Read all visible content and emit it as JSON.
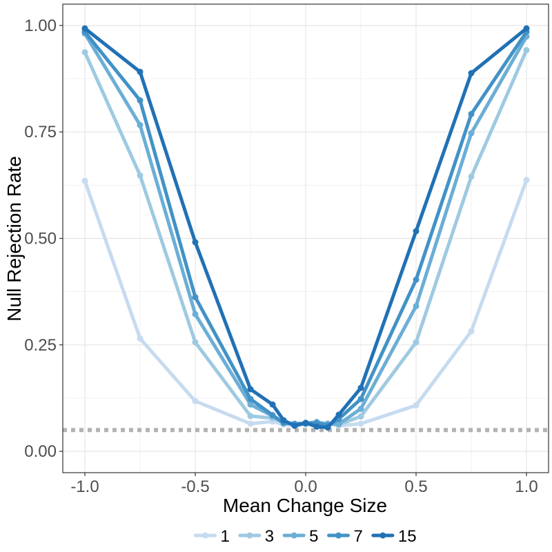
{
  "chart_data": {
    "type": "line",
    "title": "",
    "xlabel": "Mean Change Size",
    "ylabel": "Null Rejection Rate",
    "xlim": [
      -1.1,
      1.1
    ],
    "ylim": [
      -0.05,
      1.05
    ],
    "x_ticks": [
      -1.0,
      -0.5,
      0.0,
      0.5,
      1.0
    ],
    "x_tick_labels": [
      "-1.0",
      "-0.5",
      "0.0",
      "0.5",
      "1.0"
    ],
    "y_ticks": [
      0.0,
      0.25,
      0.5,
      0.75,
      1.0
    ],
    "y_tick_labels": [
      "0.00",
      "0.25",
      "0.50",
      "0.75",
      "1.00"
    ],
    "grid": true,
    "legend_position": "bottom",
    "reference_line": {
      "y": 0.05,
      "style": "dotted",
      "color": "#b3b3b3"
    },
    "x": [
      -1.0,
      -0.75,
      -0.5,
      -0.25,
      -0.15,
      -0.1,
      -0.05,
      0.0,
      0.05,
      0.1,
      0.15,
      0.25,
      0.5,
      0.75,
      1.0
    ],
    "series": [
      {
        "name": "1",
        "color": "#c6dbef",
        "values": [
          0.635,
          0.265,
          0.118,
          0.065,
          0.07,
          0.063,
          0.06,
          0.064,
          0.062,
          0.066,
          0.06,
          0.065,
          0.108,
          0.282,
          0.637
        ]
      },
      {
        "name": "3",
        "color": "#9ecae1",
        "values": [
          0.937,
          0.648,
          0.256,
          0.083,
          0.078,
          0.069,
          0.064,
          0.066,
          0.068,
          0.065,
          0.063,
          0.082,
          0.256,
          0.645,
          0.942
        ]
      },
      {
        "name": "5",
        "color": "#6baed6",
        "values": [
          0.981,
          0.766,
          0.322,
          0.11,
          0.083,
          0.066,
          0.065,
          0.066,
          0.069,
          0.064,
          0.064,
          0.1,
          0.341,
          0.747,
          0.974
        ]
      },
      {
        "name": "7",
        "color": "#4292c6",
        "values": [
          0.985,
          0.824,
          0.362,
          0.123,
          0.085,
          0.067,
          0.064,
          0.065,
          0.066,
          0.061,
          0.076,
          0.123,
          0.403,
          0.792,
          0.985
        ]
      },
      {
        "name": "15",
        "color": "#2171b5",
        "values": [
          0.993,
          0.891,
          0.491,
          0.146,
          0.11,
          0.073,
          0.06,
          0.067,
          0.058,
          0.056,
          0.086,
          0.149,
          0.517,
          0.888,
          0.993
        ]
      }
    ]
  }
}
